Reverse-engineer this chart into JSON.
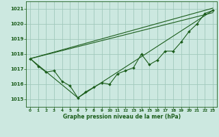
{
  "title": "Graphe pression niveau de la mer (hPa)",
  "bg_color": "#cce8e0",
  "grid_color": "#a0c8bc",
  "line_color": "#1a5c1a",
  "xlim": [
    -0.5,
    23.5
  ],
  "ylim": [
    1014.5,
    1021.5
  ],
  "yticks": [
    1015,
    1016,
    1017,
    1018,
    1019,
    1020,
    1021
  ],
  "xticks": [
    0,
    1,
    2,
    3,
    4,
    5,
    6,
    7,
    8,
    9,
    10,
    11,
    12,
    13,
    14,
    15,
    16,
    17,
    18,
    19,
    20,
    21,
    22,
    23
  ],
  "series_main": {
    "x": [
      0,
      1,
      2,
      3,
      4,
      5,
      6,
      7,
      8,
      9,
      10,
      11,
      12,
      13,
      14,
      15,
      16,
      17,
      18,
      19,
      20,
      21,
      22,
      23
    ],
    "y": [
      1017.7,
      1017.2,
      1016.8,
      1016.9,
      1016.2,
      1015.9,
      1015.1,
      1015.5,
      1015.8,
      1016.1,
      1016.0,
      1016.7,
      1016.9,
      1017.1,
      1018.0,
      1017.3,
      1017.6,
      1018.2,
      1018.2,
      1018.8,
      1019.5,
      1020.0,
      1020.7,
      1020.9
    ]
  },
  "series_trend1": {
    "x": [
      0,
      23
    ],
    "y": [
      1017.7,
      1021.05
    ]
  },
  "series_trend2": {
    "x": [
      0,
      23
    ],
    "y": [
      1017.7,
      1020.75
    ]
  },
  "series_trend3": {
    "x": [
      0,
      6,
      23
    ],
    "y": [
      1017.7,
      1015.1,
      1020.9
    ]
  }
}
